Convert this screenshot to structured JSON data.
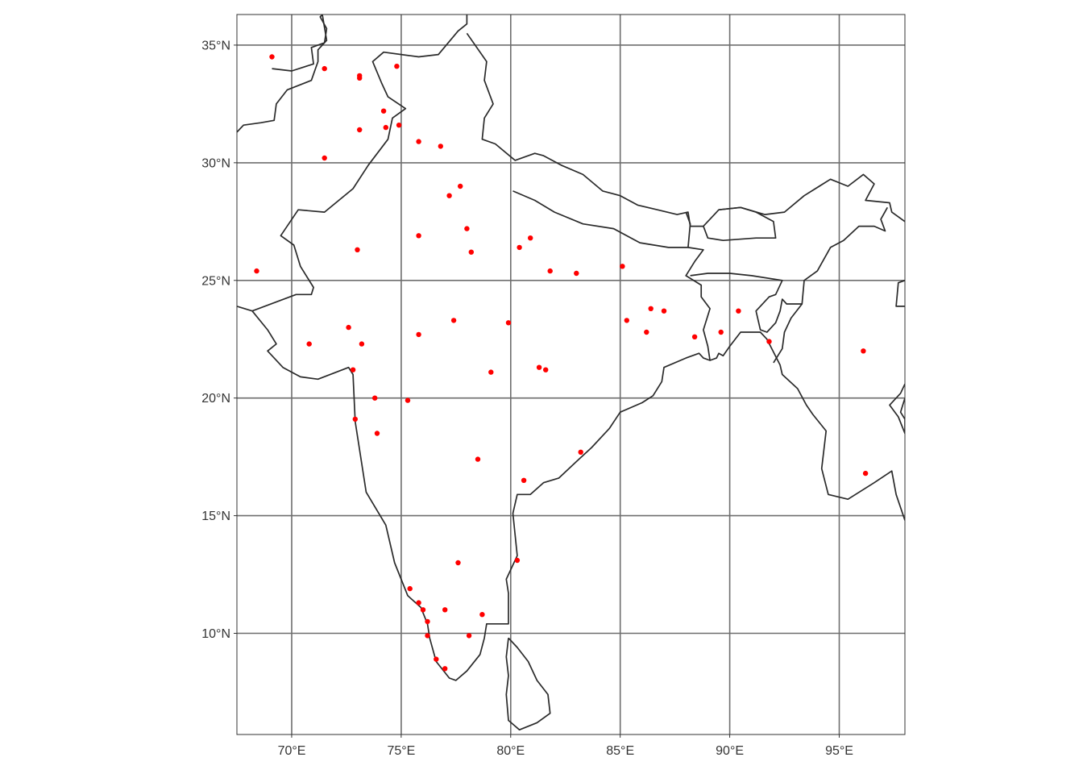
{
  "map": {
    "projection": "equirectangular",
    "extent": {
      "lon": [
        67.5,
        98.0
      ],
      "lat": [
        5.7,
        36.3
      ]
    },
    "grid": true,
    "colors": {
      "background": "#ffffff",
      "grid": "#6e6e6e",
      "border": "#2a2a2a",
      "point": "#ff0000"
    },
    "x_ticks": [
      {
        "lon": 70,
        "label": "70°E"
      },
      {
        "lon": 75,
        "label": "75°E"
      },
      {
        "lon": 80,
        "label": "80°E"
      },
      {
        "lon": 85,
        "label": "85°E"
      },
      {
        "lon": 90,
        "label": "90°E"
      },
      {
        "lon": 95,
        "label": "95°E"
      }
    ],
    "y_ticks": [
      {
        "lat": 10,
        "label": "10°N"
      },
      {
        "lat": 15,
        "label": "15°N"
      },
      {
        "lat": 20,
        "label": "20°N"
      },
      {
        "lat": 25,
        "label": "25°N"
      },
      {
        "lat": 30,
        "label": "30°N"
      },
      {
        "lat": 35,
        "label": "35°N"
      }
    ],
    "borders": [
      {
        "name": "india-pakistan-afghanistan",
        "coords": [
          [
            67.5,
            23.9
          ],
          [
            68.2,
            23.7
          ],
          [
            68.9,
            22.9
          ],
          [
            69.3,
            22.3
          ],
          [
            68.9,
            22.0
          ],
          [
            69.6,
            21.3
          ],
          [
            70.4,
            20.9
          ],
          [
            71.2,
            20.8
          ],
          [
            72.6,
            21.3
          ],
          [
            72.8,
            21.0
          ],
          [
            72.9,
            19.0
          ],
          [
            73.4,
            16.0
          ],
          [
            74.3,
            14.6
          ],
          [
            74.7,
            13.0
          ],
          [
            75.3,
            11.6
          ],
          [
            75.9,
            11.1
          ],
          [
            76.2,
            10.4
          ],
          [
            76.3,
            9.8
          ],
          [
            76.6,
            8.8
          ],
          [
            77.2,
            8.1
          ],
          [
            77.5,
            8.0
          ],
          [
            78.0,
            8.4
          ],
          [
            78.6,
            9.1
          ],
          [
            78.8,
            9.8
          ],
          [
            78.9,
            10.4
          ],
          [
            79.9,
            10.4
          ],
          [
            79.9,
            11.7
          ],
          [
            79.8,
            12.3
          ],
          [
            80.3,
            13.3
          ],
          [
            80.1,
            15.1
          ],
          [
            80.3,
            15.9
          ],
          [
            80.9,
            15.9
          ],
          [
            81.5,
            16.4
          ],
          [
            82.2,
            16.6
          ],
          [
            83.0,
            17.3
          ],
          [
            83.7,
            17.9
          ],
          [
            84.5,
            18.7
          ],
          [
            85.0,
            19.4
          ],
          [
            86.0,
            19.8
          ],
          [
            86.5,
            20.1
          ],
          [
            86.9,
            20.7
          ],
          [
            87.0,
            21.3
          ],
          [
            88.0,
            21.7
          ],
          [
            88.6,
            21.9
          ],
          [
            88.8,
            21.7
          ],
          [
            89.1,
            21.6
          ],
          [
            89.4,
            21.7
          ],
          [
            89.5,
            21.9
          ],
          [
            89.7,
            21.8
          ],
          [
            90.0,
            22.2
          ],
          [
            90.5,
            22.8
          ],
          [
            91.4,
            22.8
          ],
          [
            91.7,
            22.5
          ],
          [
            92.3,
            21.4
          ],
          [
            92.4,
            21.0
          ],
          [
            93.1,
            20.4
          ],
          [
            93.5,
            19.7
          ],
          [
            93.8,
            19.3
          ],
          [
            94.4,
            18.6
          ],
          [
            94.2,
            17.0
          ],
          [
            94.5,
            15.9
          ],
          [
            95.4,
            15.7
          ],
          [
            96.6,
            16.4
          ],
          [
            97.4,
            16.9
          ],
          [
            97.6,
            15.9
          ],
          [
            98.0,
            14.8
          ]
        ]
      },
      {
        "name": "pakistan-india-north",
        "coords": [
          [
            68.2,
            23.7
          ],
          [
            70.2,
            24.4
          ],
          [
            70.9,
            24.4
          ],
          [
            71.0,
            24.7
          ],
          [
            70.4,
            25.6
          ],
          [
            70.1,
            26.5
          ],
          [
            69.5,
            26.9
          ],
          [
            70.3,
            28.0
          ],
          [
            71.5,
            27.9
          ],
          [
            72.8,
            28.9
          ],
          [
            73.5,
            29.9
          ],
          [
            74.4,
            31.0
          ],
          [
            74.6,
            31.9
          ],
          [
            75.2,
            32.3
          ],
          [
            74.4,
            32.8
          ],
          [
            74.1,
            33.4
          ],
          [
            73.7,
            34.3
          ],
          [
            74.2,
            34.7
          ],
          [
            75.8,
            34.5
          ],
          [
            76.7,
            34.6
          ],
          [
            77.6,
            35.6
          ],
          [
            78.0,
            35.9
          ],
          [
            78.0,
            36.3
          ]
        ]
      },
      {
        "name": "afghanistan-pakistan",
        "coords": [
          [
            67.5,
            31.3
          ],
          [
            67.8,
            31.6
          ],
          [
            68.6,
            31.7
          ],
          [
            69.2,
            31.8
          ],
          [
            69.3,
            32.5
          ],
          [
            69.8,
            33.1
          ],
          [
            70.9,
            33.5
          ],
          [
            71.2,
            34.3
          ],
          [
            71.2,
            34.8
          ],
          [
            71.6,
            35.2
          ],
          [
            71.4,
            36.3
          ]
        ]
      },
      {
        "name": "kashmir-line",
        "coords": [
          [
            69.1,
            34.0
          ],
          [
            70.0,
            33.9
          ],
          [
            71.0,
            34.2
          ],
          [
            70.9,
            34.9
          ],
          [
            71.5,
            35.1
          ],
          [
            71.6,
            35.7
          ],
          [
            71.3,
            36.2
          ],
          [
            71.4,
            36.3
          ]
        ]
      },
      {
        "name": "china-india-west",
        "coords": [
          [
            78.0,
            35.5
          ],
          [
            78.9,
            34.3
          ],
          [
            78.8,
            33.5
          ],
          [
            79.2,
            32.5
          ],
          [
            78.8,
            31.9
          ],
          [
            78.7,
            31.0
          ],
          [
            79.3,
            30.8
          ],
          [
            80.2,
            30.1
          ],
          [
            81.1,
            30.4
          ],
          [
            81.5,
            30.3
          ],
          [
            82.3,
            29.9
          ],
          [
            83.3,
            29.5
          ],
          [
            84.2,
            28.8
          ],
          [
            85.0,
            28.6
          ],
          [
            85.8,
            28.2
          ],
          [
            86.7,
            28.0
          ],
          [
            87.6,
            27.8
          ],
          [
            88.1,
            27.9
          ],
          [
            88.2,
            27.3
          ],
          [
            88.8,
            27.3
          ],
          [
            89.5,
            28.0
          ],
          [
            90.5,
            28.1
          ],
          [
            91.6,
            27.8
          ],
          [
            92.5,
            27.9
          ],
          [
            93.4,
            28.6
          ],
          [
            94.6,
            29.3
          ],
          [
            95.4,
            29.0
          ],
          [
            96.1,
            29.5
          ],
          [
            96.6,
            29.1
          ],
          [
            96.2,
            28.4
          ],
          [
            97.3,
            28.3
          ],
          [
            97.4,
            27.9
          ],
          [
            98.0,
            27.5
          ]
        ]
      },
      {
        "name": "nepal",
        "coords": [
          [
            80.1,
            28.8
          ],
          [
            81.1,
            28.4
          ],
          [
            82.0,
            27.9
          ],
          [
            83.3,
            27.4
          ],
          [
            84.7,
            27.2
          ],
          [
            85.9,
            26.6
          ],
          [
            87.2,
            26.4
          ],
          [
            88.1,
            26.4
          ],
          [
            88.2,
            27.4
          ],
          [
            88.0,
            27.9
          ]
        ]
      },
      {
        "name": "bhutan",
        "coords": [
          [
            88.8,
            27.3
          ],
          [
            89.0,
            26.8
          ],
          [
            89.7,
            26.7
          ],
          [
            91.2,
            26.8
          ],
          [
            92.1,
            26.8
          ],
          [
            92.0,
            27.5
          ],
          [
            91.2,
            27.9
          ],
          [
            90.5,
            28.1
          ],
          [
            89.5,
            28.0
          ]
        ]
      },
      {
        "name": "bangladesh-india",
        "coords": [
          [
            88.1,
            26.4
          ],
          [
            88.8,
            26.3
          ],
          [
            88.4,
            25.8
          ],
          [
            88.0,
            25.2
          ],
          [
            88.7,
            24.8
          ],
          [
            88.7,
            24.3
          ],
          [
            89.1,
            23.8
          ],
          [
            88.8,
            22.9
          ],
          [
            89.0,
            22.2
          ],
          [
            89.1,
            21.6
          ]
        ]
      },
      {
        "name": "bangladesh-east",
        "coords": [
          [
            88.2,
            25.2
          ],
          [
            89.0,
            25.3
          ],
          [
            90.0,
            25.3
          ],
          [
            91.0,
            25.2
          ],
          [
            92.4,
            25.0
          ],
          [
            92.1,
            24.4
          ],
          [
            91.8,
            24.3
          ],
          [
            91.2,
            23.7
          ],
          [
            91.4,
            22.9
          ],
          [
            91.7,
            22.8
          ],
          [
            92.1,
            23.2
          ],
          [
            92.3,
            23.7
          ],
          [
            92.4,
            24.2
          ],
          [
            92.6,
            24.0
          ],
          [
            93.3,
            24.0
          ],
          [
            93.4,
            25.0
          ],
          [
            94.0,
            25.4
          ],
          [
            94.6,
            26.4
          ],
          [
            95.2,
            26.7
          ],
          [
            95.9,
            27.3
          ],
          [
            96.6,
            27.3
          ],
          [
            97.1,
            27.1
          ],
          [
            96.9,
            27.6
          ],
          [
            97.2,
            28.1
          ]
        ]
      },
      {
        "name": "myanmar-india",
        "coords": [
          [
            92.0,
            21.5
          ],
          [
            92.4,
            22.1
          ],
          [
            92.5,
            22.8
          ],
          [
            92.8,
            23.4
          ],
          [
            93.3,
            24.0
          ]
        ]
      },
      {
        "name": "myanmar-east",
        "coords": [
          [
            98.0,
            25.0
          ],
          [
            97.7,
            24.9
          ],
          [
            97.6,
            23.9
          ],
          [
            98.0,
            23.9
          ]
        ]
      },
      {
        "name": "myanmar-thailand",
        "coords": [
          [
            98.0,
            20.0
          ],
          [
            97.8,
            19.4
          ],
          [
            98.0,
            19.1
          ],
          [
            98.0,
            19.1
          ],
          [
            98.0,
            18.5
          ],
          [
            97.7,
            19.2
          ],
          [
            97.3,
            19.7
          ],
          [
            97.8,
            20.2
          ],
          [
            98.0,
            20.6
          ]
        ]
      },
      {
        "name": "sri-lanka",
        "coords": [
          [
            79.9,
            9.8
          ],
          [
            80.3,
            9.4
          ],
          [
            80.8,
            8.8
          ],
          [
            81.2,
            8.0
          ],
          [
            81.7,
            7.4
          ],
          [
            81.8,
            6.6
          ],
          [
            81.2,
            6.2
          ],
          [
            80.4,
            5.9
          ],
          [
            79.9,
            6.3
          ],
          [
            79.8,
            7.4
          ],
          [
            79.9,
            8.2
          ],
          [
            79.8,
            9.0
          ],
          [
            79.9,
            9.8
          ]
        ]
      }
    ],
    "points": [
      {
        "lon": 69.1,
        "lat": 34.5
      },
      {
        "lon": 71.5,
        "lat": 34.0
      },
      {
        "lon": 73.1,
        "lat": 33.7
      },
      {
        "lon": 73.1,
        "lat": 33.6
      },
      {
        "lon": 74.8,
        "lat": 34.1
      },
      {
        "lon": 74.2,
        "lat": 32.2
      },
      {
        "lon": 74.3,
        "lat": 31.5
      },
      {
        "lon": 74.9,
        "lat": 31.6
      },
      {
        "lon": 73.1,
        "lat": 31.4
      },
      {
        "lon": 71.5,
        "lat": 30.2
      },
      {
        "lon": 75.8,
        "lat": 30.9
      },
      {
        "lon": 76.8,
        "lat": 30.7
      },
      {
        "lon": 77.2,
        "lat": 28.6
      },
      {
        "lon": 77.7,
        "lat": 29.0
      },
      {
        "lon": 78.0,
        "lat": 27.2
      },
      {
        "lon": 75.8,
        "lat": 26.9
      },
      {
        "lon": 78.2,
        "lat": 26.2
      },
      {
        "lon": 73.0,
        "lat": 26.3
      },
      {
        "lon": 80.4,
        "lat": 26.4
      },
      {
        "lon": 80.9,
        "lat": 26.8
      },
      {
        "lon": 81.8,
        "lat": 25.4
      },
      {
        "lon": 83.0,
        "lat": 25.3
      },
      {
        "lon": 85.1,
        "lat": 25.6
      },
      {
        "lon": 68.4,
        "lat": 25.4
      },
      {
        "lon": 72.6,
        "lat": 23.0
      },
      {
        "lon": 70.8,
        "lat": 22.3
      },
      {
        "lon": 73.2,
        "lat": 22.3
      },
      {
        "lon": 72.8,
        "lat": 21.2
      },
      {
        "lon": 75.8,
        "lat": 22.7
      },
      {
        "lon": 77.4,
        "lat": 23.3
      },
      {
        "lon": 79.9,
        "lat": 23.2
      },
      {
        "lon": 79.1,
        "lat": 21.1
      },
      {
        "lon": 81.3,
        "lat": 21.3
      },
      {
        "lon": 81.6,
        "lat": 21.2
      },
      {
        "lon": 85.3,
        "lat": 23.3
      },
      {
        "lon": 86.2,
        "lat": 22.8
      },
      {
        "lon": 86.4,
        "lat": 23.8
      },
      {
        "lon": 87.0,
        "lat": 23.7
      },
      {
        "lon": 88.4,
        "lat": 22.6
      },
      {
        "lon": 89.6,
        "lat": 22.8
      },
      {
        "lon": 90.4,
        "lat": 23.7
      },
      {
        "lon": 91.8,
        "lat": 22.4
      },
      {
        "lon": 96.1,
        "lat": 22.0
      },
      {
        "lon": 73.8,
        "lat": 20.0
      },
      {
        "lon": 75.3,
        "lat": 19.9
      },
      {
        "lon": 72.9,
        "lat": 19.1
      },
      {
        "lon": 73.9,
        "lat": 18.5
      },
      {
        "lon": 78.5,
        "lat": 17.4
      },
      {
        "lon": 83.2,
        "lat": 17.7
      },
      {
        "lon": 80.6,
        "lat": 16.5
      },
      {
        "lon": 96.2,
        "lat": 16.8
      },
      {
        "lon": 77.6,
        "lat": 13.0
      },
      {
        "lon": 80.3,
        "lat": 13.1
      },
      {
        "lon": 75.4,
        "lat": 11.9
      },
      {
        "lon": 75.8,
        "lat": 11.3
      },
      {
        "lon": 76.0,
        "lat": 11.0
      },
      {
        "lon": 77.0,
        "lat": 11.0
      },
      {
        "lon": 78.7,
        "lat": 10.8
      },
      {
        "lon": 76.2,
        "lat": 10.5
      },
      {
        "lon": 76.2,
        "lat": 9.9
      },
      {
        "lon": 78.1,
        "lat": 9.9
      },
      {
        "lon": 76.6,
        "lat": 8.9
      },
      {
        "lon": 77.0,
        "lat": 8.5
      }
    ]
  }
}
